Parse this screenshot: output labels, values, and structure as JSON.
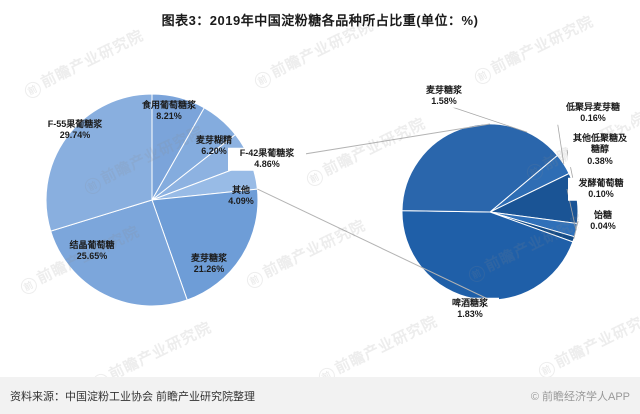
{
  "title": "图表3：2019年中国淀粉糖各品种所占比重(单位：%)",
  "watermark": {
    "glyph": "前",
    "text": "前瞻产业研究院"
  },
  "footer": {
    "source": "资料来源：中国淀粉工业协会 前瞻产业研究院整理",
    "credit": "© 前瞻经济学人APP"
  },
  "chart_data": {
    "type": "pie",
    "layout": "pie-of-pie",
    "title": "图表3：2019年中国淀粉糖各品种所占比重(单位：%)",
    "unit": "%",
    "connector": {
      "from_pie": 0,
      "from_slice_label": "其他",
      "to_pie": 1
    },
    "pies": [
      {
        "id": "main-pie",
        "center": [
          152,
          200
        ],
        "radius": 106,
        "start_angle": 0,
        "slices": [
          {
            "label": "食用葡萄糖浆",
            "value": 8.21,
            "pct": "8.21%",
            "color": "#7BA4DA",
            "label_pos": [
              169,
              111
            ],
            "label_width": 58
          },
          {
            "label": "麦芽糊精",
            "value": 6.2,
            "pct": "6.20%",
            "color": "#84ACDE",
            "label_pos": [
              214,
              146
            ],
            "label_width": 62
          },
          {
            "label": "F-42果葡糖浆",
            "value": 4.86,
            "pct": "4.86%",
            "color": "#8DB2E1",
            "label_pos": [
              267,
              159
            ],
            "label_width": 76
          },
          {
            "label": "其他",
            "value": 4.09,
            "pct": "4.09%",
            "color": "#98BBE6",
            "label_pos": [
              241,
              196
            ],
            "label_width": 40
          },
          {
            "label": "麦芽糖浆",
            "value": 21.26,
            "pct": "21.26%",
            "color": "#6E9DD7",
            "label_pos": [
              209,
              264
            ],
            "label_width": 56
          },
          {
            "label": "结晶葡萄糖",
            "value": 25.65,
            "pct": "25.65%",
            "color": "#7CA6DB",
            "label_pos": [
              92,
              251
            ],
            "label_width": 62
          },
          {
            "label": "F-55果葡糖浆",
            "value": 29.74,
            "pct": "29.74%",
            "color": "#89AFDF",
            "label_pos": [
              75,
              130
            ],
            "label_width": 80
          }
        ]
      },
      {
        "id": "secondary-pie",
        "center": [
          490,
          212
        ],
        "radius": 88,
        "start_angle": 50,
        "slices": [
          {
            "label": "低聚异麦芽糖",
            "value": 0.16,
            "pct": "0.16%",
            "color": "#2E6DB4",
            "label_pos": [
              593,
              113
            ],
            "label_width": 74,
            "leader_angle": 57,
            "leader_from": [
              556,
              113
            ]
          },
          {
            "label": "其他低聚糖及糖醇",
            "value": 0.38,
            "pct": "0.38%",
            "color": "#1A5495",
            "label_pos": [
              600,
              150
            ],
            "label_width": 62,
            "leader_angle": 81,
            "leader_from": [
              567,
              150
            ]
          },
          {
            "label": "发酵葡萄糖",
            "value": 0.1,
            "pct": "0.10%",
            "color": "#2F70B9",
            "label_pos": [
              601,
              189
            ],
            "label_width": 64,
            "leader_angle": 102,
            "leader_from": [
              567,
              189
            ]
          },
          {
            "label": "饴糖",
            "value": 0.04,
            "pct": "0.04%",
            "color": "#134B87",
            "label_pos": [
              603,
              221
            ],
            "label_width": 46,
            "leader_angle": 108,
            "leader_from": [
              578,
              221
            ]
          },
          {
            "label": "啤酒糖浆",
            "value": 1.83,
            "pct": "1.83%",
            "color": "#1F5FA8",
            "label_pos": [
              470,
              309
            ],
            "label_width": 56,
            "leader_angle": 185,
            "leader_from": [
              470,
              298
            ]
          },
          {
            "label": "麦芽糖浆",
            "value": 1.58,
            "pct": "1.58%",
            "color": "#2A66AC",
            "label_pos": [
              444,
              96
            ],
            "label_width": 60,
            "leader_angle": 25,
            "leader_from": [
              452,
              107
            ]
          }
        ]
      }
    ]
  }
}
